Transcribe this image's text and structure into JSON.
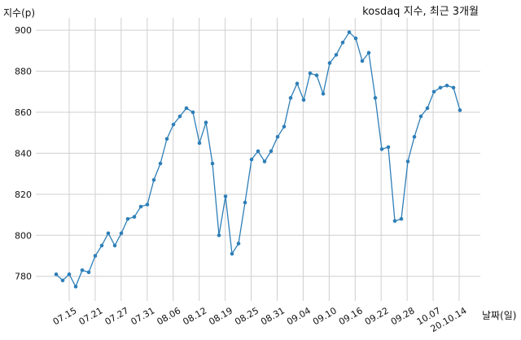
{
  "chart_data": {
    "type": "line",
    "title": "kosdaq 지수, 최근 3개월",
    "xlabel": "날짜(일)",
    "ylabel": "지수(p)",
    "ylim": [
      768,
      906
    ],
    "yticks": [
      780,
      800,
      820,
      840,
      860,
      880,
      900
    ],
    "xtick_labels": [
      "07.15",
      "07.21",
      "07.27",
      "07.31",
      "08.06",
      "08.12",
      "08.19",
      "08.25",
      "08.31",
      "09.04",
      "09.10",
      "09.16",
      "09.22",
      "09.28",
      "10.07",
      "20.10.14"
    ],
    "grid": true,
    "legend": "none",
    "series": [
      {
        "color": "#2e7fb8",
        "values": [
          781,
          778,
          781,
          775,
          783,
          782,
          790,
          795,
          801,
          795,
          801,
          808,
          809,
          814,
          815,
          827,
          835,
          847,
          854,
          858,
          862,
          860,
          845,
          855,
          835,
          800,
          819,
          791,
          796,
          816,
          837,
          841,
          836,
          841,
          848,
          853,
          867,
          874,
          866,
          879,
          878,
          869,
          884,
          888,
          894,
          899,
          896,
          885,
          889,
          867,
          842,
          843,
          807,
          808,
          836,
          848,
          858,
          862,
          870,
          872,
          873,
          872,
          861
        ]
      }
    ]
  }
}
